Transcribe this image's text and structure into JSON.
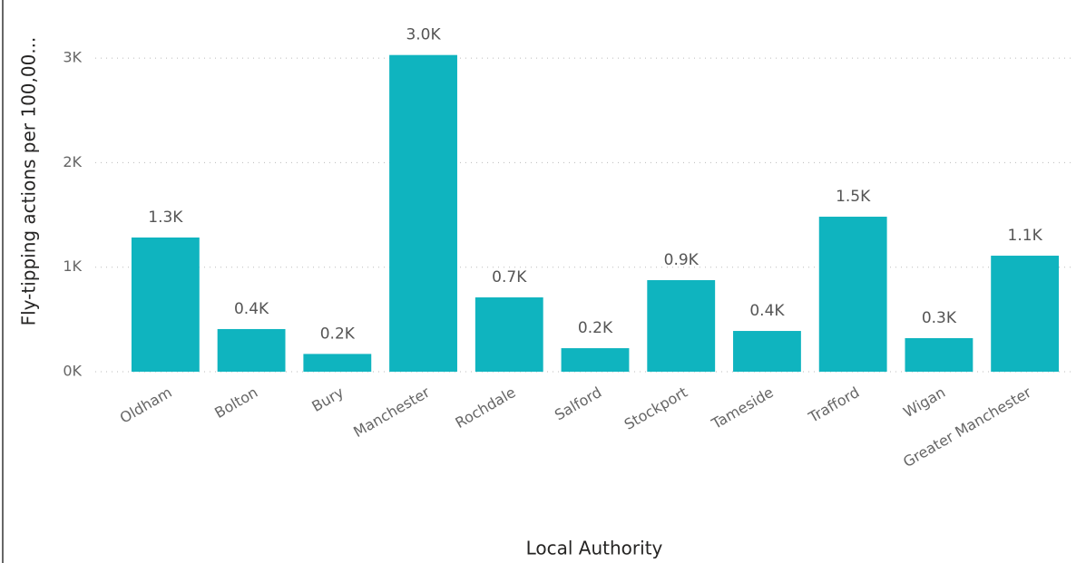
{
  "chart_data": {
    "type": "bar",
    "x_label": "Local Authority",
    "y_label": "Fly-tipping actions per 100,00...",
    "categories": [
      "Oldham",
      "Bolton",
      "Bury",
      "Manchester",
      "Rochdale",
      "Salford",
      "Stockport",
      "Tameside",
      "Trafford",
      "Wigan",
      "Greater Manchester"
    ],
    "values": [
      1284,
      408,
      170,
      3030,
      711,
      225,
      876,
      390,
      1483,
      321,
      1110
    ],
    "value_labels": [
      "1.3K",
      "0.4K",
      "0.2K",
      "3.0K",
      "0.7K",
      "0.2K",
      "0.9K",
      "0.4K",
      "1.5K",
      "0.3K",
      "1.1K"
    ],
    "color": "#0fb4bf",
    "ylim": [
      0,
      3500
    ],
    "yticks": [
      {
        "value": 0,
        "label": "0K"
      },
      {
        "value": 1000,
        "label": "1K"
      },
      {
        "value": 2000,
        "label": "2K"
      },
      {
        "value": 3000,
        "label": "3K"
      }
    ],
    "grid": true
  }
}
